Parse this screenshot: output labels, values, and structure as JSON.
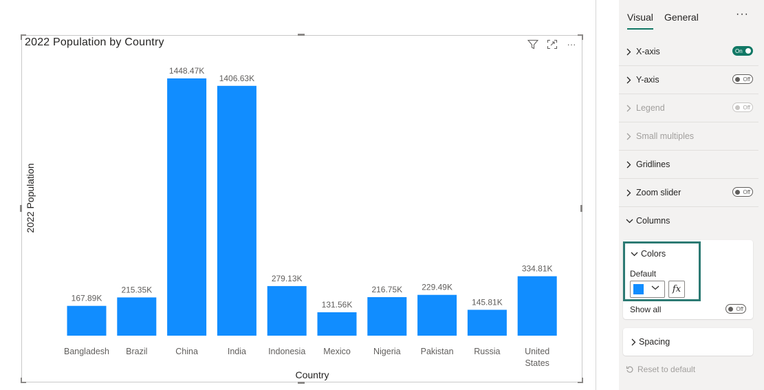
{
  "chart_data": {
    "type": "bar",
    "title": "2022 Population by Country",
    "xlabel": "Country",
    "ylabel": "2022 Population",
    "categories": [
      "Bangladesh",
      "Brazil",
      "China",
      "India",
      "Indonesia",
      "Mexico",
      "Nigeria",
      "Pakistan",
      "Russia",
      "United States"
    ],
    "category_lines": [
      [
        "Bangladesh"
      ],
      [
        "Brazil"
      ],
      [
        "China"
      ],
      [
        "India"
      ],
      [
        "Indonesia"
      ],
      [
        "Mexico"
      ],
      [
        "Nigeria"
      ],
      [
        "Pakistan"
      ],
      [
        "Russia"
      ],
      [
        "United",
        "States"
      ]
    ],
    "values": [
      167.89,
      215.35,
      1448.47,
      1406.63,
      279.13,
      131.56,
      216.75,
      229.49,
      145.81,
      334.81
    ],
    "value_labels": [
      "167.89K",
      "215.35K",
      "1448.47K",
      "1406.63K",
      "279.13K",
      "131.56K",
      "216.75K",
      "229.49K",
      "145.81K",
      "334.81K"
    ],
    "unit": "K",
    "ylim": [
      0,
      1448.47
    ],
    "grid": false,
    "bar_color": "#118dff"
  },
  "visual_header": {
    "icons": [
      "filter-icon",
      "focus-mode-icon",
      "more-options-icon"
    ],
    "more_glyph": "···"
  },
  "pane": {
    "tabs": {
      "visual": "Visual",
      "general": "General",
      "more": "···"
    },
    "accent_color": "#117865",
    "sections": [
      {
        "label": "X-axis",
        "toggle": "On",
        "state": "on",
        "enabled": true
      },
      {
        "label": "Y-axis",
        "toggle": "Off",
        "state": "off",
        "enabled": true
      },
      {
        "label": "Legend",
        "toggle": "Off",
        "state": "off",
        "enabled": false
      },
      {
        "label": "Small multiples",
        "enabled": false
      },
      {
        "label": "Gridlines",
        "enabled": true
      },
      {
        "label": "Zoom slider",
        "toggle": "Off",
        "state": "off",
        "enabled": true
      },
      {
        "label": "Columns",
        "expanded": true,
        "enabled": true
      }
    ],
    "colors": {
      "header": "Colors",
      "default_label": "Default",
      "default_color": "#118dff",
      "fx_label": "fx",
      "show_all_label": "Show all",
      "show_all_toggle": "Off"
    },
    "spacing": {
      "header": "Spacing"
    },
    "reset": "Reset to default",
    "highlight_color": "#2c7a73"
  }
}
